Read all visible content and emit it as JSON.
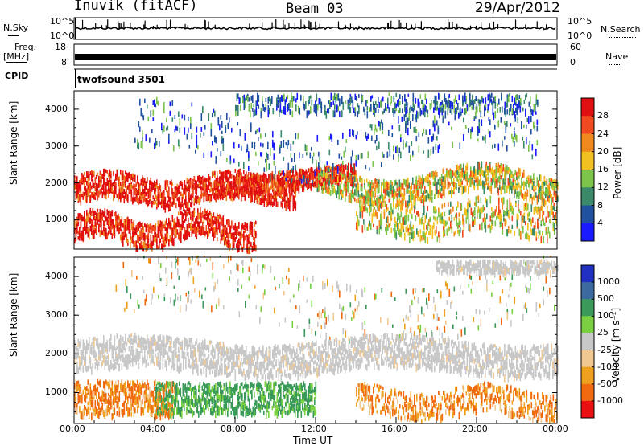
{
  "header": {
    "station": "Inuvik (fitACF)",
    "beam": "Beam 03",
    "date": "29/Apr/2012"
  },
  "top_panels": {
    "nsky_label": "N.Sky",
    "nsky_ticks": [
      "10^5",
      "10^0"
    ],
    "nsearch_label": "N.Search",
    "nsearch_ticks": [
      "10^5",
      "10^0"
    ],
    "freq_label": "Freq.",
    "freq_unit": "[MHz]",
    "freq_ticks": [
      "18",
      "8"
    ],
    "nave_label": "Nave",
    "nave_ticks": [
      "60",
      "0"
    ],
    "cpid_label": "CPID",
    "cpid_value": "twofsound 3501"
  },
  "colors": {
    "power_scale": [
      "#1a1aff",
      "#2050a0",
      "#3a8a6a",
      "#7cc44a",
      "#f2c020",
      "#f08a20",
      "#f04a20",
      "#e01010"
    ],
    "velocity_scale": [
      "#e81010",
      "#f06a10",
      "#f0a020",
      "#f0c890",
      "#c8c8c8",
      "#7ad040",
      "#3a9a5a",
      "#3a6aa0",
      "#2030c0"
    ]
  },
  "chart_data": [
    {
      "type": "heatmap",
      "ylabel": "Slant Range [km]",
      "xlabel": "",
      "ylim": [
        200,
        4500
      ],
      "y_ticks": [
        "1000",
        "2000",
        "3000",
        "4000"
      ],
      "colorbar_label": "Power [dB]",
      "colorbar_ticks": [
        "28",
        "24",
        "20",
        "16",
        "12",
        "8",
        "4"
      ]
    },
    {
      "type": "heatmap",
      "ylabel": "Slant Range [km]",
      "xlabel": "Time UT",
      "ylim": [
        200,
        4500
      ],
      "y_ticks": [
        "1000",
        "2000",
        "3000",
        "4000"
      ],
      "x_ticks": [
        "00:00",
        "04:00",
        "08:00",
        "12:00",
        "16:00",
        "20:00",
        "00:00"
      ],
      "colorbar_label": "Velocity [m s⁻¹]",
      "colorbar_ticks": [
        "1000",
        "500",
        "100",
        "25",
        "-25",
        "-100",
        "-500",
        "-1000"
      ]
    }
  ]
}
